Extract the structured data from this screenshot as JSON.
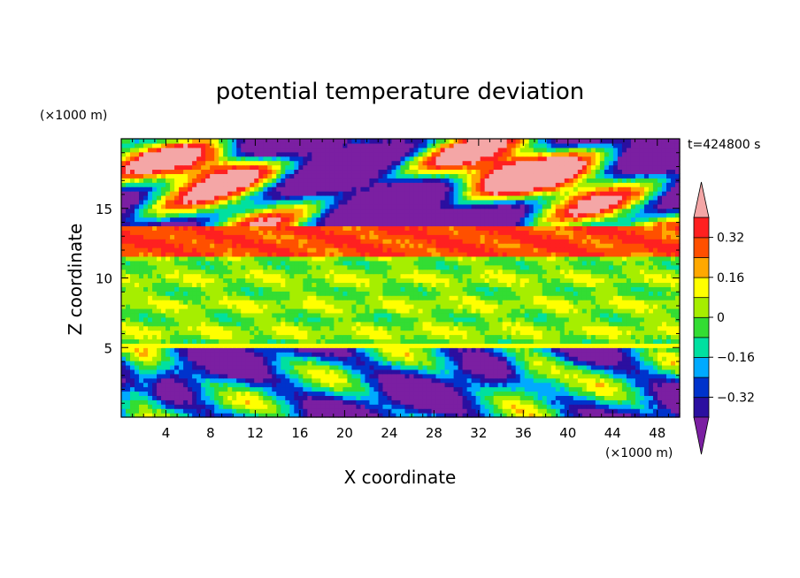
{
  "chart_data": {
    "type": "heatmap",
    "title": "potential temperature deviation",
    "xlabel": "X coordinate",
    "ylabel": "Z coordinate",
    "x_unit": "(×1000 m)",
    "y_unit": "(×1000 m)",
    "time_label": "t=424800 s",
    "xlim": [
      0,
      50
    ],
    "ylim": [
      0,
      20
    ],
    "x_ticks": [
      4,
      8,
      12,
      16,
      20,
      24,
      28,
      32,
      36,
      40,
      44,
      48
    ],
    "y_ticks": [
      5,
      10,
      15
    ],
    "colorbar": {
      "levels": [
        -0.4,
        -0.32,
        -0.24,
        -0.16,
        -0.08,
        0,
        0.08,
        0.16,
        0.24,
        0.32,
        0.4
      ],
      "tick_labels": [
        "0.32",
        "0.16",
        "0",
        "−0.16",
        "−0.32"
      ],
      "tick_values": [
        0.32,
        0.16,
        0,
        -0.16,
        -0.32
      ],
      "colors": [
        "#7b1fa2",
        "#2b0fa0",
        "#0033cc",
        "#00aaff",
        "#00e0a0",
        "#33dd33",
        "#a6ee00",
        "#ffff00",
        "#ffa800",
        "#ff5000",
        "#ff2020",
        "#f4a6a6"
      ],
      "extend": "both"
    }
  }
}
